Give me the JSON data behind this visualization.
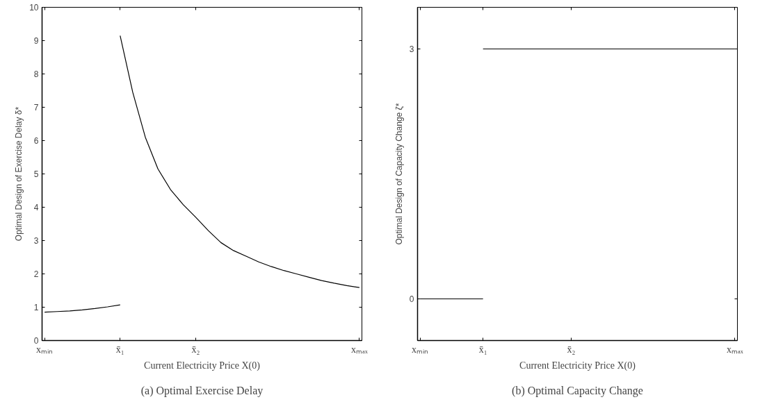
{
  "chart_data": [
    {
      "type": "line",
      "xlabel": "Current Electricity Price X(0)",
      "ylabel": "Optimal Design of Exercise Delay δ*",
      "annotations": [
        "(a) Optimal Exercise Delay"
      ],
      "grid": false,
      "marker": "none",
      "line_style": "solid",
      "categories": [
        "xₘᵢₙ",
        null,
        null,
        null,
        null,
        null,
        "x̄₁",
        null,
        null,
        null,
        null,
        null,
        "x̄₂",
        null,
        null,
        null,
        null,
        null,
        null,
        null,
        null,
        null,
        null,
        null,
        null,
        "xₘₐₓ"
      ],
      "ylim": [
        0,
        10
      ],
      "yticks": [
        0,
        1,
        2,
        3,
        4,
        5,
        6,
        7,
        8,
        9,
        10
      ],
      "series": [
        {
          "color": "#000000",
          "values": [
            0.85,
            0.87,
            0.89,
            0.92,
            0.96,
            1.01,
            1.07,
            null,
            null,
            null,
            null,
            null,
            null,
            null,
            null,
            null,
            null,
            null,
            null,
            null,
            null,
            null,
            null,
            null,
            null,
            null
          ]
        },
        {
          "color": "#000000",
          "values": [
            null,
            null,
            null,
            null,
            null,
            null,
            9.15,
            7.45,
            6.1,
            5.15,
            4.53,
            4.08,
            3.7,
            3.3,
            2.94,
            2.7,
            2.53,
            2.36,
            2.22,
            2.1,
            2.0,
            1.9,
            1.8,
            1.72,
            1.65,
            1.59
          ]
        }
      ]
    },
    {
      "type": "line",
      "xlabel": "Current Electricity Price X(0)",
      "ylabel": "Optimal Design of Capacity Change ζ*",
      "annotations": [
        "(b) Optimal Capacity Change"
      ],
      "grid": false,
      "marker": "none",
      "line_style": "solid",
      "categories": [
        "xₘᵢₙ",
        null,
        null,
        null,
        null,
        "x̄₁",
        null,
        null,
        null,
        null,
        null,
        null,
        "x̄₂",
        null,
        null,
        null,
        null,
        null,
        null,
        null,
        null,
        null,
        null,
        null,
        null,
        "xₘₐₓ"
      ],
      "ylim": [
        -0.5,
        3.5
      ],
      "yticks": [
        0,
        3
      ],
      "series": [
        {
          "color": "#000000",
          "values": [
            0,
            0,
            0,
            0,
            0,
            0,
            null,
            null,
            null,
            null,
            null,
            null,
            null,
            null,
            null,
            null,
            null,
            null,
            null,
            null,
            null,
            null,
            null,
            null,
            null,
            null
          ]
        },
        {
          "color": "#000000",
          "values": [
            null,
            null,
            null,
            null,
            null,
            3,
            3,
            3,
            3,
            3,
            3,
            3,
            3,
            3,
            3,
            3,
            3,
            3,
            3,
            3,
            3,
            3,
            3,
            3,
            3,
            3
          ]
        }
      ]
    }
  ]
}
